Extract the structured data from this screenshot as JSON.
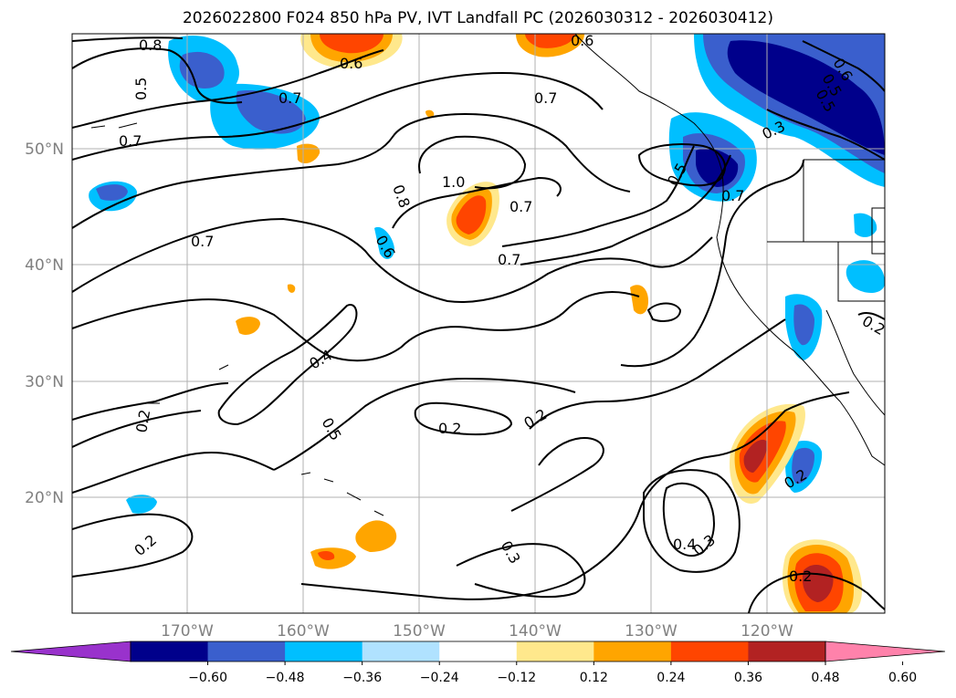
{
  "title": "2026022800 F024 850 hPa PV, IVT Landfall PC (2026030312 - 2026030412)",
  "map": {
    "lon_labels": [
      "170°W",
      "160°W",
      "150°W",
      "140°W",
      "130°W",
      "120°W"
    ],
    "lat_labels": [
      "50°N",
      "40°N",
      "30°N",
      "20°N"
    ],
    "contour_labels": [
      "0.8",
      "0.6",
      "0.6",
      "0.7",
      "0.7",
      "0.7",
      "0.7",
      "1.0",
      "0.8",
      "0.7",
      "0.7",
      "0.6",
      "0.5",
      "0.3",
      "0.5",
      "0.6",
      "0.5",
      "0.5",
      "0.7",
      "0.4",
      "0.5",
      "0.2",
      "0.2",
      "0.2",
      "0.3",
      "0.2",
      "0.2",
      "0.4",
      "0.3",
      "0.2",
      "0.2",
      "0.2"
    ]
  },
  "colorbar": {
    "tick_labels": [
      "−0.60",
      "−0.48",
      "−0.36",
      "−0.24",
      "−0.12",
      "0.12",
      "0.24",
      "0.36",
      "0.48",
      "0.60"
    ],
    "colors": [
      "#9932cc",
      "#00008b",
      "#3a5fcd",
      "#00bfff",
      "#b0e2ff",
      "#ffffff",
      "#ffe88c",
      "#ffa500",
      "#ff4500",
      "#b22222",
      "#ff82ab"
    ]
  }
}
